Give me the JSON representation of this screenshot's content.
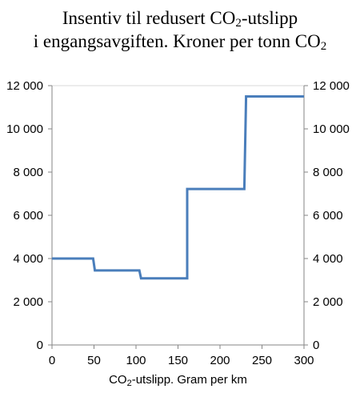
{
  "chart_data": {
    "type": "line",
    "title_line1_pre": "Insentiv til redusert CO",
    "title_line1_sub": "2",
    "title_line1_post": "-utslipp",
    "title_line2_pre": "i engangsavgiften. Kroner per tonn CO",
    "title_line2_sub": "2",
    "xlabel_pre": "CO",
    "xlabel_sub": "2",
    "xlabel_post": "-utslipp. Gram per km",
    "ylabel": "",
    "xlim": [
      0,
      300
    ],
    "ylim": [
      0,
      12000
    ],
    "x_ticks": [
      "0",
      "50",
      "100",
      "150",
      "200",
      "250",
      "300"
    ],
    "y_ticks": [
      "0",
      "2 000",
      "4 000",
      "6 000",
      "8 000",
      "10 000",
      "12 000"
    ],
    "x_tick_values": [
      0,
      50,
      100,
      150,
      200,
      250,
      300
    ],
    "y_tick_values": [
      0,
      2000,
      4000,
      6000,
      8000,
      10000,
      12000
    ],
    "secondary_y_axis": true,
    "grid": false,
    "line_color": "#4a7ebb",
    "series": [
      {
        "x": [
          0,
          49,
          51,
          104,
          106,
          161,
          161,
          229,
          231,
          300
        ],
        "values": [
          4000,
          4000,
          3450,
          3450,
          3080,
          3080,
          7220,
          7220,
          11500,
          11500
        ]
      }
    ]
  }
}
